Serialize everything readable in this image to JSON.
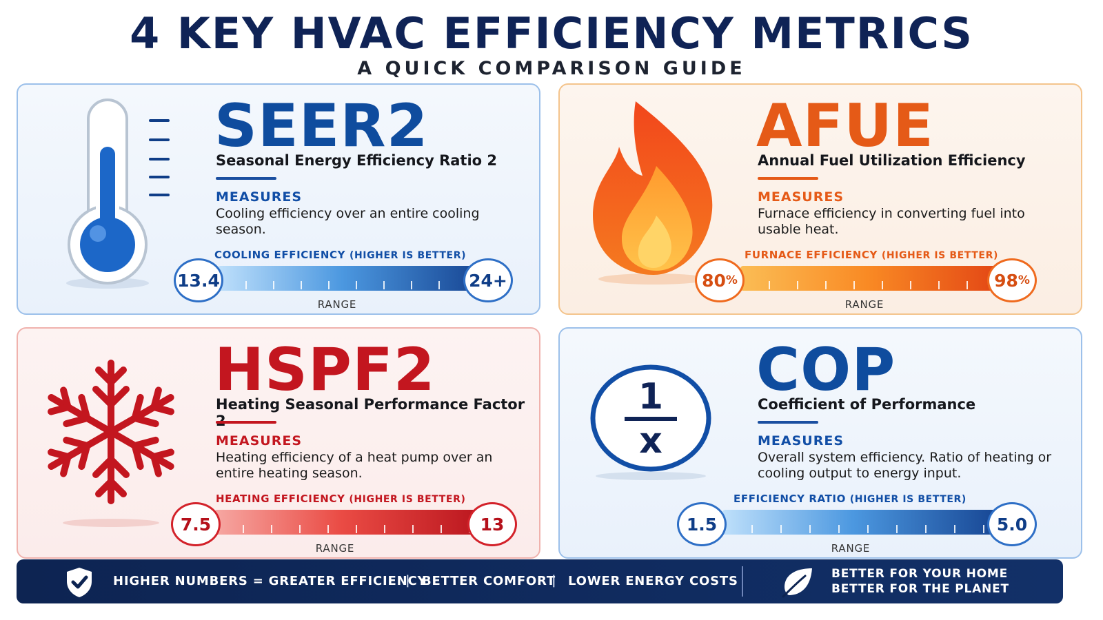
{
  "header": {
    "title": "4 KEY HVAC EFFICIENCY METRICS",
    "subtitle": "A QUICK COMPARISON GUIDE"
  },
  "colors": {
    "blue": "#0f4c9e",
    "orange": "#e55a17",
    "red": "#c3161f",
    "navy": "#0f2356"
  },
  "cards": {
    "seer": {
      "metric": "SEER2",
      "full_name": "Seasonal Energy Efficiency Ratio 2",
      "measures_label": "MEASURES",
      "measures_text": "Cooling efficiency over an entire cooling season.",
      "bar_label": "COOLING EFFICIENCY",
      "bar_sub": "(HIGHER IS BETTER)",
      "range_min": "13.4",
      "range_max": "24+",
      "range_label": "RANGE",
      "icon": "thermometer-icon"
    },
    "afue": {
      "metric": "AFUE",
      "full_name": "Annual Fuel Utilization Efficiency",
      "measures_label": "MEASURES",
      "measures_text": "Furnace efficiency in converting fuel into usable heat.",
      "bar_label": "FURNACE EFFICIENCY",
      "bar_sub": "(HIGHER IS BETTER)",
      "range_min": "80",
      "range_max": "98",
      "range_unit": "%",
      "range_label": "RANGE",
      "icon": "flame-icon"
    },
    "hspf": {
      "metric": "HSPF2",
      "full_name": "Heating Seasonal Performance Factor 2",
      "measures_label": "MEASURES",
      "measures_text": "Heating efficiency of a heat pump over an entire heating season.",
      "bar_label": "HEATING EFFICIENCY",
      "bar_sub": "(HIGHER IS BETTER)",
      "range_min": "7.5",
      "range_max": "13",
      "range_label": "RANGE",
      "icon": "snowflake-icon"
    },
    "cop": {
      "metric": "COP",
      "full_name": "Coefficient of Performance",
      "measures_label": "MEASURES",
      "measures_text": "Overall system efficiency. Ratio of heating or cooling output to energy input.",
      "bar_label": "EFFICIENCY RATIO",
      "bar_sub": "(HIGHER IS BETTER)",
      "range_min": "1.5",
      "range_max": "5.0",
      "range_label": "RANGE",
      "icon": "fraction-icon",
      "icon_numerator": "1",
      "icon_denominator": "x"
    }
  },
  "footer": {
    "item1": "HIGHER NUMBERS = GREATER EFFICIENCY",
    "item2": "BETTER COMFORT",
    "item3": "LOWER ENERGY COSTS",
    "separator": "|",
    "planet_line1": "BETTER FOR YOUR HOME",
    "planet_line2": "BETTER FOR THE PLANET",
    "icons": [
      "shield-check-icon",
      "leaf-icon"
    ]
  }
}
